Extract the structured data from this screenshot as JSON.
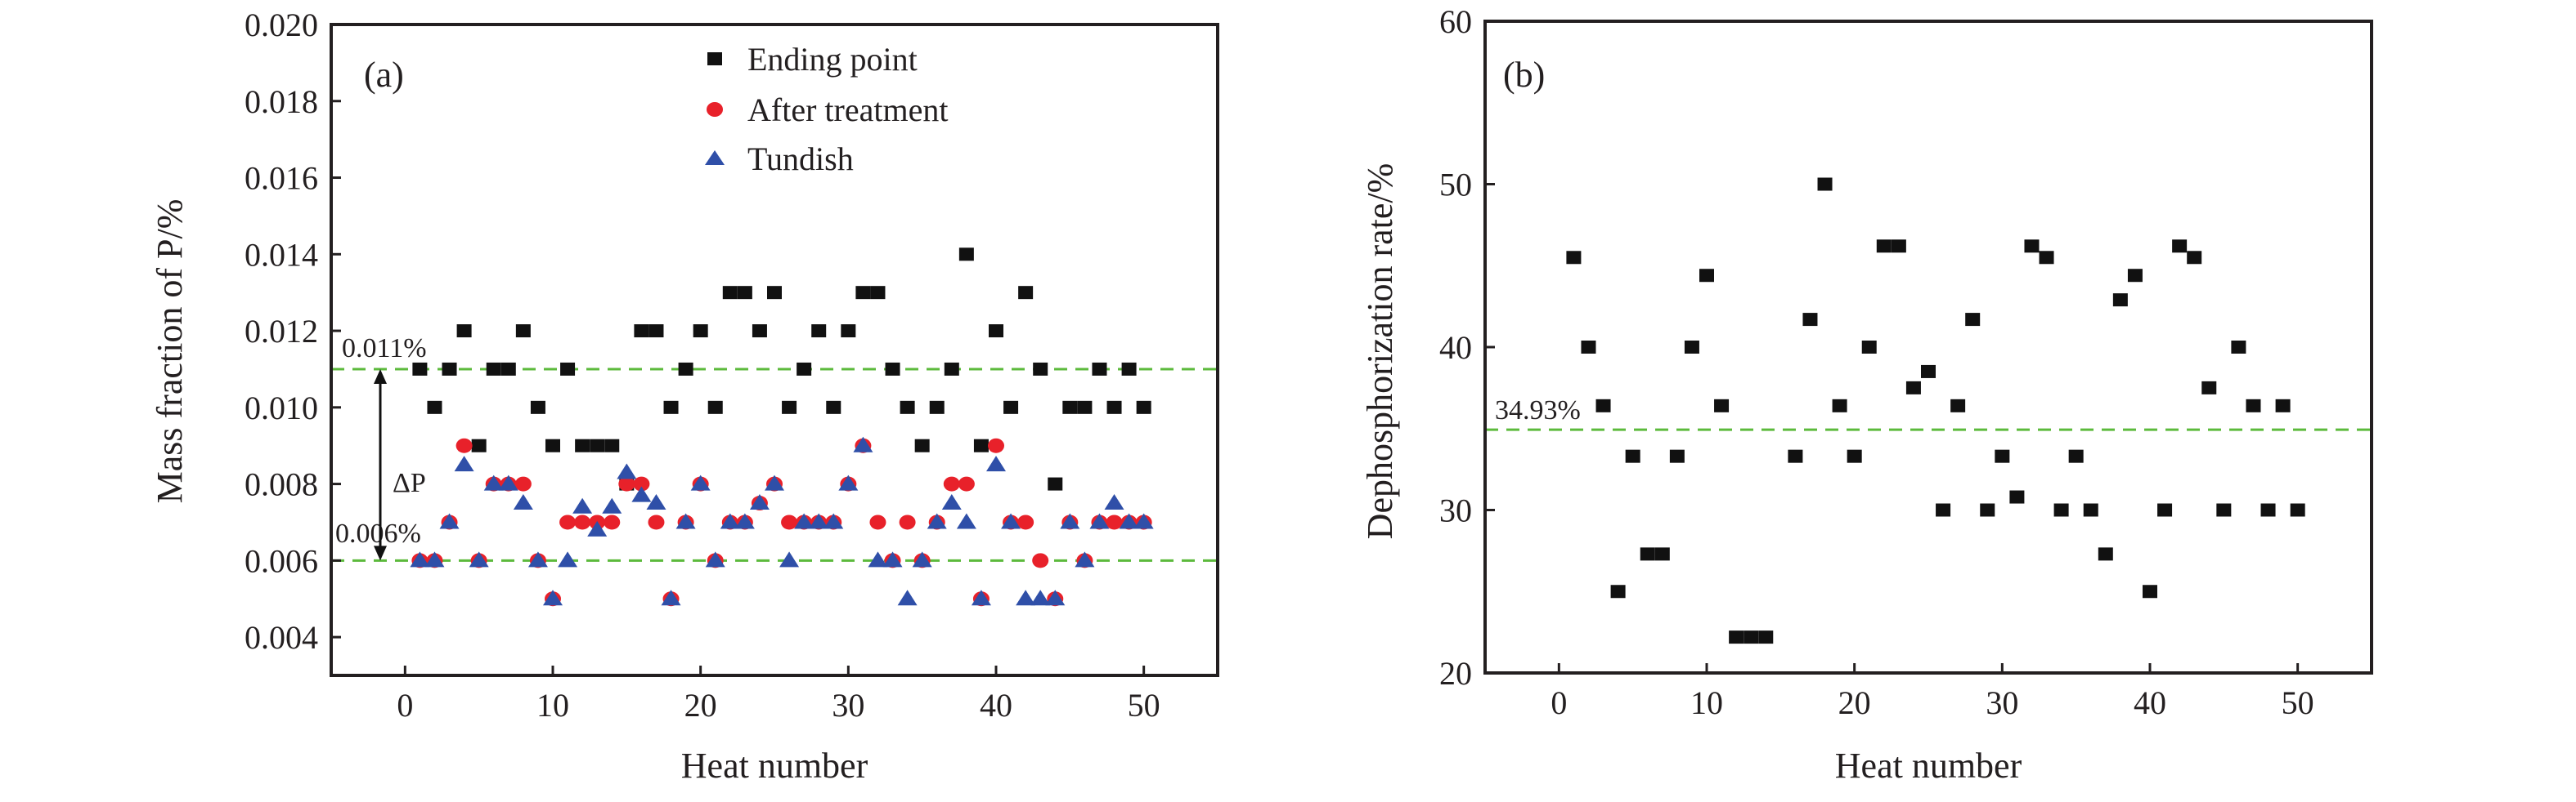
{
  "colors": {
    "ending": "#111111",
    "after": "#e8212a",
    "tundish": "#2f4fa8",
    "refline": "#5cba3c",
    "axis": "#231f20"
  },
  "chart_data": [
    {
      "type": "scatter",
      "panel_label": "(a)",
      "xlabel": "Heat number",
      "ylabel": "Mass fraction of P/%",
      "xlim": [
        -5,
        55
      ],
      "ylim": [
        0.003,
        0.02
      ],
      "xticks": [
        0,
        10,
        20,
        30,
        40,
        50
      ],
      "yticks": [
        0.004,
        0.006,
        0.008,
        0.01,
        0.012,
        0.014,
        0.016,
        0.018,
        0.02
      ],
      "ytick_labels": [
        "0.004",
        "0.006",
        "0.008",
        "0.010",
        "0.012",
        "0.014",
        "0.016",
        "0.018",
        "0.020"
      ],
      "legend_position": "top-center",
      "x": [
        1,
        2,
        3,
        4,
        5,
        6,
        7,
        8,
        9,
        10,
        11,
        12,
        13,
        14,
        15,
        16,
        17,
        18,
        19,
        20,
        21,
        22,
        23,
        24,
        25,
        26,
        27,
        28,
        29,
        30,
        31,
        32,
        33,
        34,
        35,
        36,
        37,
        38,
        39,
        40,
        41,
        42,
        43,
        44,
        45,
        46,
        47,
        48,
        49,
        50
      ],
      "series": [
        {
          "name": "Ending point",
          "marker": "square",
          "color_key": "ending",
          "values": [
            0.011,
            0.01,
            0.011,
            0.012,
            0.009,
            0.011,
            0.011,
            0.012,
            0.01,
            0.009,
            0.011,
            0.009,
            0.009,
            0.009,
            0.008,
            0.012,
            0.012,
            0.01,
            0.011,
            0.012,
            0.01,
            0.013,
            0.013,
            0.012,
            0.013,
            0.01,
            0.011,
            0.012,
            0.01,
            0.012,
            0.013,
            0.013,
            0.011,
            0.01,
            0.009,
            0.01,
            0.011,
            0.014,
            0.009,
            0.012,
            0.01,
            0.013,
            0.011,
            0.008,
            0.01,
            0.01,
            0.011,
            0.01,
            0.011,
            0.01
          ]
        },
        {
          "name": "After treatment",
          "marker": "circle",
          "color_key": "after",
          "values": [
            0.006,
            0.006,
            0.007,
            0.009,
            0.006,
            0.008,
            0.008,
            0.008,
            0.006,
            0.005,
            0.007,
            0.007,
            0.007,
            0.007,
            0.008,
            0.008,
            0.007,
            0.005,
            0.007,
            0.008,
            0.006,
            0.007,
            0.007,
            0.0075,
            0.008,
            0.007,
            0.007,
            0.007,
            0.007,
            0.008,
            0.009,
            0.007,
            0.006,
            0.007,
            0.006,
            0.007,
            0.008,
            0.008,
            0.005,
            0.009,
            0.007,
            0.007,
            0.006,
            0.005,
            0.007,
            0.006,
            0.007,
            0.007,
            0.007,
            0.007
          ]
        },
        {
          "name": "Tundish",
          "marker": "triangle",
          "color_key": "tundish",
          "values": [
            0.006,
            0.006,
            0.007,
            0.0085,
            0.006,
            0.008,
            0.008,
            0.0075,
            0.006,
            0.005,
            0.006,
            0.0074,
            0.0068,
            0.0074,
            0.0083,
            0.0077,
            0.0075,
            0.005,
            0.007,
            0.008,
            0.006,
            0.007,
            0.007,
            0.0075,
            0.008,
            0.006,
            0.007,
            0.007,
            0.007,
            0.008,
            0.009,
            0.006,
            0.006,
            0.005,
            0.006,
            0.007,
            0.0075,
            0.007,
            0.005,
            0.0085,
            0.007,
            0.005,
            0.005,
            0.005,
            0.007,
            0.006,
            0.007,
            0.0075,
            0.007,
            0.007
          ]
        }
      ],
      "reference_lines": [
        {
          "y": 0.011,
          "label": "0.011%"
        },
        {
          "y": 0.006,
          "label": "0.006%"
        }
      ],
      "annotation": "ΔP"
    },
    {
      "type": "scatter",
      "panel_label": "(b)",
      "xlabel": "Heat number",
      "ylabel": "Dephosphorization rate/%",
      "xlim": [
        -5,
        55
      ],
      "ylim": [
        20,
        60
      ],
      "xticks": [
        0,
        10,
        20,
        30,
        40,
        50
      ],
      "yticks": [
        20,
        30,
        40,
        50,
        60
      ],
      "ytick_labels": [
        "20",
        "30",
        "40",
        "50",
        "60"
      ],
      "x": [
        1,
        2,
        3,
        4,
        5,
        6,
        7,
        8,
        9,
        10,
        11,
        12,
        13,
        14,
        16,
        17,
        18,
        19,
        20,
        21,
        22,
        23,
        24,
        25,
        26,
        27,
        28,
        29,
        30,
        31,
        32,
        33,
        34,
        35,
        36,
        37,
        38,
        39,
        40,
        41,
        42,
        43,
        44,
        45,
        46,
        47,
        48,
        49,
        50
      ],
      "series": [
        {
          "name": "Dephosphorization rate",
          "marker": "square",
          "color_key": "ending",
          "values": [
            45.5,
            40,
            36.4,
            25,
            33.3,
            27.3,
            27.3,
            33.3,
            40,
            44.4,
            36.4,
            22.2,
            22.2,
            22.2,
            33.3,
            41.7,
            50,
            36.4,
            33.3,
            40,
            46.2,
            46.2,
            37.5,
            38.5,
            30,
            36.4,
            41.7,
            30,
            33.3,
            30.8,
            46.2,
            45.5,
            30,
            33.3,
            30,
            27.3,
            42.9,
            44.4,
            25,
            30,
            46.2,
            45.5,
            37.5,
            30,
            40,
            36.4,
            30,
            36.4,
            30
          ]
        }
      ],
      "reference_lines": [
        {
          "y": 34.93,
          "label": "34.93%"
        }
      ]
    }
  ]
}
